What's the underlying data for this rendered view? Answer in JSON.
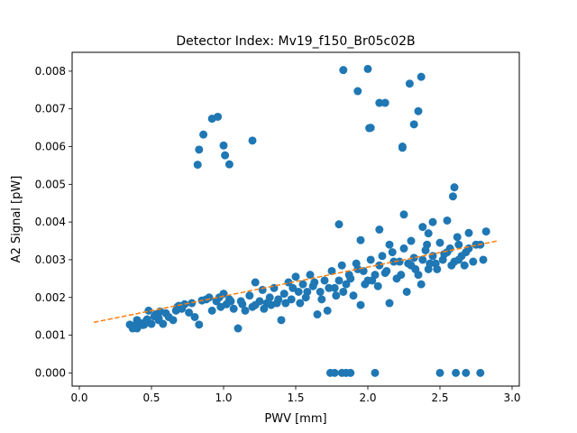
{
  "chart_data": {
    "type": "scatter",
    "title": "Detector Index: Mv19_f150_Br05c02B",
    "xlabel": "PWV [mm]",
    "ylabel": "A2 Signal [pW]",
    "xlim": [
      -0.05,
      3.05
    ],
    "ylim": [
      -0.00035,
      0.0085
    ],
    "x_ticks": [
      0.0,
      0.5,
      1.0,
      1.5,
      2.0,
      2.5,
      3.0
    ],
    "x_tick_labels": [
      "0.0",
      "0.5",
      "1.0",
      "1.5",
      "2.0",
      "2.5",
      "3.0"
    ],
    "y_ticks": [
      0.0,
      0.001,
      0.002,
      0.003,
      0.004,
      0.005,
      0.006,
      0.007,
      0.008
    ],
    "y_tick_labels": [
      "0.000",
      "0.001",
      "0.002",
      "0.003",
      "0.004",
      "0.005",
      "0.006",
      "0.007",
      "0.008"
    ],
    "grid": false,
    "colors": {
      "points": "#1f77b4",
      "fit": "#ff7f0e"
    },
    "fit_line": {
      "style": "dashed",
      "x": [
        0.1,
        2.9
      ],
      "y": [
        0.00134,
        0.0035
      ]
    },
    "series": [
      {
        "name": "data",
        "points": [
          [
            0.35,
            0.00128
          ],
          [
            0.37,
            0.00118
          ],
          [
            0.38,
            0.00125
          ],
          [
            0.4,
            0.00118
          ],
          [
            0.42,
            0.00132
          ],
          [
            0.44,
            0.00127
          ],
          [
            0.46,
            0.00136
          ],
          [
            0.47,
            0.00142
          ],
          [
            0.48,
            0.00165
          ],
          [
            0.5,
            0.0013
          ],
          [
            0.52,
            0.0015
          ],
          [
            0.53,
            0.00155
          ],
          [
            0.55,
            0.0014
          ],
          [
            0.56,
            0.00163
          ],
          [
            0.58,
            0.0013
          ],
          [
            0.6,
            0.00158
          ],
          [
            0.62,
            0.00148
          ],
          [
            0.65,
            0.0014
          ],
          [
            0.67,
            0.00165
          ],
          [
            0.69,
            0.00178
          ],
          [
            0.71,
            0.0017
          ],
          [
            0.73,
            0.00182
          ],
          [
            0.76,
            0.0016
          ],
          [
            0.8,
            0.00148
          ],
          [
            0.83,
            0.00128
          ],
          [
            0.88,
            0.00195
          ],
          [
            0.9,
            0.002
          ],
          [
            0.92,
            0.00165
          ],
          [
            0.95,
            0.0019
          ],
          [
            0.97,
            0.002
          ],
          [
            1.0,
            0.0021
          ],
          [
            1.02,
            0.00182
          ],
          [
            1.04,
            0.00195
          ],
          [
            1.07,
            0.0017
          ],
          [
            1.1,
            0.00118
          ],
          [
            1.12,
            0.0019
          ],
          [
            1.15,
            0.00165
          ],
          [
            1.18,
            0.00205
          ],
          [
            1.2,
            0.00175
          ],
          [
            1.22,
            0.0024
          ],
          [
            1.25,
            0.0019
          ],
          [
            1.27,
            0.0022
          ],
          [
            1.3,
            0.00185
          ],
          [
            1.32,
            0.002
          ],
          [
            1.35,
            0.00225
          ],
          [
            1.37,
            0.00185
          ],
          [
            1.4,
            0.0014
          ],
          [
            1.42,
            0.0021
          ],
          [
            1.45,
            0.0024
          ],
          [
            1.47,
            0.00195
          ],
          [
            1.5,
            0.00255
          ],
          [
            1.52,
            0.00215
          ],
          [
            1.55,
            0.00235
          ],
          [
            1.57,
            0.002
          ],
          [
            1.6,
            0.0026
          ],
          [
            1.62,
            0.0023
          ],
          [
            1.65,
            0.00155
          ],
          [
            1.67,
            0.00215
          ],
          [
            1.7,
            0.00245
          ],
          [
            1.72,
            0.00165
          ],
          [
            1.75,
            0.0027
          ],
          [
            1.77,
            0.00225
          ],
          [
            1.8,
            0.00245
          ],
          [
            1.82,
            0.00285
          ],
          [
            1.85,
            0.00235
          ],
          [
            1.87,
            0.0026
          ],
          [
            1.9,
            0.00205
          ],
          [
            1.92,
            0.0029
          ],
          [
            1.95,
            0.0018
          ],
          [
            1.97,
            0.0027
          ],
          [
            2.0,
            0.00245
          ],
          [
            2.02,
            0.003
          ],
          [
            2.05,
            0.0026
          ],
          [
            2.07,
            0.0023
          ],
          [
            2.1,
            0.0031
          ],
          [
            2.12,
            0.00265
          ],
          [
            2.15,
            0.00185
          ],
          [
            2.17,
            0.0032
          ],
          [
            2.2,
            0.0025
          ],
          [
            2.22,
            0.00295
          ],
          [
            2.25,
            0.0033
          ],
          [
            2.27,
            0.00215
          ],
          [
            2.3,
            0.00285
          ],
          [
            2.32,
            0.00305
          ],
          [
            2.35,
            0.0026
          ],
          [
            2.37,
            0.00235
          ],
          [
            2.4,
            0.00325
          ],
          [
            2.42,
            0.00275
          ],
          [
            2.45,
            0.0031
          ],
          [
            2.47,
            0.0029
          ],
          [
            2.5,
            0.00345
          ],
          [
            2.52,
            0.003
          ],
          [
            2.55,
            0.0032
          ],
          [
            2.57,
            0.0033
          ],
          [
            2.6,
            0.00295
          ],
          [
            2.62,
            0.0036
          ],
          [
            2.65,
            0.0031
          ],
          [
            2.67,
            0.00285
          ],
          [
            2.7,
            0.0033
          ],
          [
            2.75,
            0.0034
          ],
          [
            2.8,
            0.003
          ],
          [
            2.82,
            0.00375
          ],
          [
            0.4,
            0.0014
          ],
          [
            0.45,
            0.00128
          ],
          [
            0.55,
            0.00145
          ],
          [
            0.68,
            0.00175
          ],
          [
            0.78,
            0.00185
          ],
          [
            0.85,
            0.00192
          ],
          [
            0.98,
            0.00175
          ],
          [
            1.05,
            0.0019
          ],
          [
            1.13,
            0.00182
          ],
          [
            1.22,
            0.0018
          ],
          [
            1.28,
            0.0017
          ],
          [
            1.33,
            0.0018
          ],
          [
            1.38,
            0.00195
          ],
          [
            1.43,
            0.00185
          ],
          [
            1.48,
            0.00225
          ],
          [
            1.53,
            0.00185
          ],
          [
            1.58,
            0.00215
          ],
          [
            1.63,
            0.0024
          ],
          [
            1.68,
            0.00195
          ],
          [
            1.73,
            0.00225
          ],
          [
            1.78,
            0.00205
          ],
          [
            1.83,
            0.00215
          ],
          [
            1.88,
            0.0025
          ],
          [
            1.93,
            0.00275
          ],
          [
            1.98,
            0.00235
          ],
          [
            2.03,
            0.00245
          ],
          [
            2.08,
            0.00285
          ],
          [
            2.13,
            0.0027
          ],
          [
            2.18,
            0.00295
          ],
          [
            2.23,
            0.0026
          ],
          [
            2.28,
            0.0029
          ],
          [
            2.33,
            0.00275
          ],
          [
            2.38,
            0.003
          ],
          [
            2.43,
            0.0029
          ],
          [
            2.48,
            0.00275
          ],
          [
            2.53,
            0.00315
          ],
          [
            2.58,
            0.00285
          ],
          [
            2.63,
            0.003
          ],
          [
            2.68,
            0.0032
          ],
          [
            2.73,
            0.00295
          ],
          [
            2.78,
            0.0034
          ],
          [
            0.82,
            0.00552
          ],
          [
            0.83,
            0.00592
          ],
          [
            0.86,
            0.00632
          ],
          [
            0.92,
            0.00674
          ],
          [
            0.96,
            0.00679
          ],
          [
            1.0,
            0.00603
          ],
          [
            1.01,
            0.00577
          ],
          [
            1.04,
            0.00553
          ],
          [
            1.2,
            0.00616
          ],
          [
            1.83,
            0.00803
          ],
          [
            1.93,
            0.00747
          ],
          [
            2.0,
            0.00806
          ],
          [
            2.01,
            0.00649
          ],
          [
            2.02,
            0.0065
          ],
          [
            2.08,
            0.00716
          ],
          [
            2.12,
            0.00716
          ],
          [
            2.24,
            0.00597
          ],
          [
            2.24,
            0.006
          ],
          [
            2.29,
            0.00767
          ],
          [
            2.32,
            0.00659
          ],
          [
            2.35,
            0.00694
          ],
          [
            2.37,
            0.00785
          ],
          [
            1.8,
            0.00394
          ],
          [
            1.95,
            0.00352
          ],
          [
            2.08,
            0.0038
          ],
          [
            2.25,
            0.0042
          ],
          [
            2.38,
            0.00387
          ],
          [
            2.41,
            0.0034
          ],
          [
            2.42,
            0.0037
          ],
          [
            2.55,
            0.00404
          ],
          [
            2.59,
            0.00468
          ],
          [
            2.6,
            0.00492
          ],
          [
            2.63,
            0.0034
          ],
          [
            2.7,
            0.00371
          ],
          [
            2.15,
            0.0034
          ],
          [
            2.3,
            0.0035
          ],
          [
            2.45,
            0.004
          ],
          [
            1.74,
            0.0
          ],
          [
            1.77,
            0.0
          ],
          [
            1.82,
            0.0
          ],
          [
            1.85,
            0.0
          ],
          [
            1.88,
            0.0
          ],
          [
            2.05,
            0.0
          ],
          [
            2.5,
            0.0
          ],
          [
            2.61,
            0.0
          ],
          [
            2.68,
            0.0
          ],
          [
            2.78,
            0.0
          ]
        ]
      }
    ]
  }
}
